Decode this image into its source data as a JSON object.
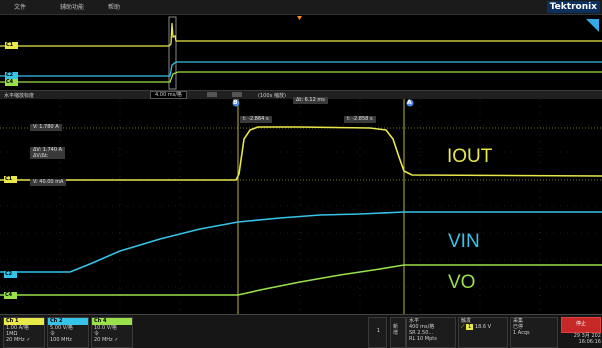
{
  "menu": {
    "items": [
      "文件",
      "辅助功能",
      "帮助"
    ]
  },
  "brand": "Tektronix",
  "zoom": {
    "scale": "4.00 ms/格",
    "factor": "(100x 缩放)"
  },
  "overview_label": "水平缩放标度",
  "cursors": {
    "delta_t": "Δt: 6.12 ms",
    "t_b": "t: -2.864 s",
    "t_a": "t: -2.858 s",
    "v": "V: 1.780 A",
    "delta_v": "ΔV: 1.740 A",
    "dv_dt": "ΔV/Δt:",
    "v2": "V: 40.00 mA",
    "marker_a": "A",
    "marker_b": "B"
  },
  "labels": {
    "iout": "IOUT",
    "vin": "VIN",
    "vo": "VO"
  },
  "gnd_tags": {
    "c1": "C1",
    "c2": "C2",
    "c4": "C4"
  },
  "channels": [
    {
      "name": "Ch 1",
      "l1": "1.00 A/格",
      "l2": "1MΩ",
      "l3": "20 MHz ✓",
      "color": "#e8e84a"
    },
    {
      "name": "Ch 2",
      "l1": "5.00 V/格",
      "l2": "令",
      "l3": "100 MHz",
      "color": "#35c4e8"
    },
    {
      "name": "Ch 4",
      "l1": "10.0 V/格",
      "l2": "令",
      "l3": "20 MHz ✓",
      "color": "#9ae04a"
    }
  ],
  "bottom": {
    "num": "1",
    "side": "新增",
    "horizontal": {
      "title": "水平",
      "l1": "400 ms/格",
      "l2": "SR 2.50...",
      "l3": "RL 10 Mpts"
    },
    "trigger": {
      "title": "触发",
      "ch": "1",
      "level": "18.6 V"
    },
    "acq": {
      "title": "采集",
      "l1": "已停",
      "l2": "1 Acqs"
    },
    "stop": "停止",
    "date": "29 3月 202",
    "time": "16:06:16"
  },
  "colors": {
    "ch1": "#e8e84a",
    "ch2": "#35c4e8",
    "ch4": "#9ae04a"
  }
}
